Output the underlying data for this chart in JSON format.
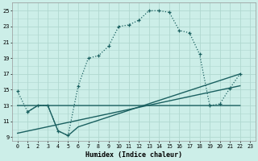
{
  "xlabel": "Humidex (Indice chaleur)",
  "background_color": "#cceee8",
  "grid_color": "#b0d8d0",
  "line_color": "#1a6060",
  "xlim": [
    -0.5,
    23.5
  ],
  "ylim": [
    8.5,
    26.0
  ],
  "xtick_labels": [
    "0",
    "1",
    "2",
    "3",
    "4",
    "5",
    "6",
    "7",
    "8",
    "9",
    "10",
    "11",
    "12",
    "13",
    "14",
    "15",
    "16",
    "17",
    "18",
    "19",
    "20",
    "21",
    "22",
    "23"
  ],
  "ytick_values": [
    9,
    11,
    13,
    15,
    17,
    19,
    21,
    23,
    25
  ],
  "curve1_x": [
    0,
    1,
    2,
    3,
    4,
    5,
    6,
    7,
    8,
    9,
    10,
    11,
    12,
    13,
    14,
    15,
    16,
    17,
    18,
    19,
    20,
    21,
    22
  ],
  "curve1_y": [
    14.8,
    12.2,
    13.0,
    13.0,
    9.8,
    9.2,
    15.5,
    19.0,
    19.3,
    20.5,
    23.0,
    23.2,
    23.8,
    25.0,
    25.0,
    24.8,
    22.5,
    22.2,
    19.5,
    13.0,
    13.2,
    15.2,
    17.0
  ],
  "curve2_x": [
    1,
    2,
    3,
    4,
    5,
    6,
    7,
    8,
    9,
    10,
    11,
    12,
    13,
    14,
    15,
    16,
    17,
    18,
    19,
    20,
    21,
    22
  ],
  "curve2_y": [
    12.2,
    13.0,
    13.0,
    13.0,
    13.0,
    13.0,
    13.0,
    13.0,
    13.0,
    13.0,
    13.0,
    13.0,
    13.0,
    13.0,
    13.0,
    13.0,
    13.0,
    13.0,
    13.0,
    13.0,
    13.0,
    13.0
  ],
  "curve3_x": [
    0,
    3,
    4,
    5,
    6,
    22
  ],
  "curve3_y": [
    13.0,
    13.0,
    9.8,
    9.2,
    10.3,
    17.0
  ],
  "curve4_x": [
    0,
    22
  ],
  "curve4_y": [
    9.5,
    15.5
  ]
}
